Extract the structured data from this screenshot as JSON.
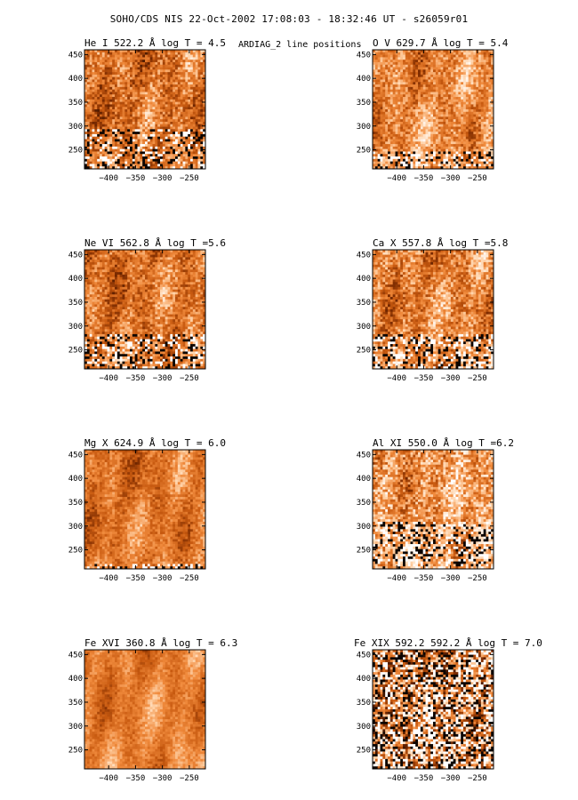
{
  "figure": {
    "title": "SOHO/CDS NIS  22-Oct-2002 17:08:03 - 18:32:46 UT - s26059r01",
    "subtitle": "ARDIAG_2 line positions"
  },
  "chart_data": [
    {
      "type": "heatmap",
      "title": "He I  522.2 Å log T = 4.5",
      "x_ticks": [
        -400,
        -350,
        -300,
        -250
      ],
      "y_ticks": [
        250,
        300,
        350,
        400,
        450
      ],
      "xlim": [
        -445,
        -220
      ],
      "ylim": [
        210,
        460
      ],
      "colormap": [
        "#000000",
        "#7a2a00",
        "#c85a10",
        "#f08a3c",
        "#ffd2a8",
        "#ffffff"
      ],
      "mean_intensity": 0.55,
      "noise": 0.22,
      "speckle_rows_below": 0.35
    },
    {
      "type": "heatmap",
      "title": "O V  629.7 Å log T = 5.4",
      "x_ticks": [
        -400,
        -350,
        -300,
        -250
      ],
      "y_ticks": [
        250,
        300,
        350,
        400,
        450
      ],
      "xlim": [
        -445,
        -220
      ],
      "ylim": [
        210,
        460
      ],
      "colormap": [
        "#000000",
        "#7a2a00",
        "#c85a10",
        "#f08a3c",
        "#ffd2a8",
        "#ffffff"
      ],
      "mean_intensity": 0.62,
      "noise": 0.2,
      "speckle_rows_below": 0.15
    },
    {
      "type": "heatmap",
      "title": "Ne VI  562.8 Å log T =5.6",
      "x_ticks": [
        -400,
        -350,
        -300,
        -250
      ],
      "y_ticks": [
        250,
        300,
        350,
        400,
        450
      ],
      "xlim": [
        -445,
        -220
      ],
      "ylim": [
        210,
        460
      ],
      "colormap": [
        "#000000",
        "#7a2a00",
        "#c85a10",
        "#f08a3c",
        "#ffd2a8",
        "#ffffff"
      ],
      "mean_intensity": 0.55,
      "noise": 0.2,
      "speckle_rows_below": 0.3
    },
    {
      "type": "heatmap",
      "title": "Ca X  557.8 Å log T =5.8",
      "x_ticks": [
        -400,
        -350,
        -300,
        -250
      ],
      "y_ticks": [
        250,
        300,
        350,
        400,
        450
      ],
      "xlim": [
        -445,
        -220
      ],
      "ylim": [
        210,
        460
      ],
      "colormap": [
        "#000000",
        "#7a2a00",
        "#c85a10",
        "#f08a3c",
        "#ffd2a8",
        "#ffffff"
      ],
      "mean_intensity": 0.6,
      "noise": 0.22,
      "speckle_rows_below": 0.3
    },
    {
      "type": "heatmap",
      "title": "Mg X  624.9 Å log T = 6.0",
      "x_ticks": [
        -400,
        -350,
        -300,
        -250
      ],
      "y_ticks": [
        250,
        300,
        350,
        400,
        450
      ],
      "xlim": [
        -445,
        -220
      ],
      "ylim": [
        210,
        460
      ],
      "colormap": [
        "#000000",
        "#7a2a00",
        "#c85a10",
        "#f08a3c",
        "#ffd2a8",
        "#ffffff"
      ],
      "mean_intensity": 0.55,
      "noise": 0.14,
      "speckle_rows_below": 0.05
    },
    {
      "type": "heatmap",
      "title": "Al XI  550.0 Å log T =6.2",
      "x_ticks": [
        -400,
        -350,
        -300,
        -250
      ],
      "y_ticks": [
        250,
        300,
        350,
        400,
        450
      ],
      "xlim": [
        -445,
        -220
      ],
      "ylim": [
        210,
        460
      ],
      "colormap": [
        "#000000",
        "#7a2a00",
        "#c85a10",
        "#f08a3c",
        "#ffd2a8",
        "#ffffff"
      ],
      "mean_intensity": 0.68,
      "noise": 0.26,
      "speckle_rows_below": 0.4
    },
    {
      "type": "heatmap",
      "title": "Fe XVI  360.8 Å log T = 6.3",
      "x_ticks": [
        -400,
        -350,
        -300,
        -250
      ],
      "y_ticks": [
        250,
        300,
        350,
        400,
        450
      ],
      "xlim": [
        -445,
        -220
      ],
      "ylim": [
        210,
        460
      ],
      "colormap": [
        "#000000",
        "#7a2a00",
        "#c85a10",
        "#f08a3c",
        "#ffd2a8",
        "#ffffff"
      ],
      "mean_intensity": 0.58,
      "noise": 0.1,
      "speckle_rows_below": 0.0
    },
    {
      "type": "heatmap",
      "title": "Fe XIX 592.2  592.2 Å log T = 7.0",
      "x_ticks": [
        -400,
        -350,
        -300,
        -250
      ],
      "y_ticks": [
        250,
        300,
        350,
        400,
        450
      ],
      "xlim": [
        -445,
        -220
      ],
      "ylim": [
        210,
        460
      ],
      "colormap": [
        "#000000",
        "#7a2a00",
        "#c85a10",
        "#f08a3c",
        "#ffd2a8",
        "#ffffff"
      ],
      "mean_intensity": 0.6,
      "noise": 0.45,
      "speckle_rows_below": 1.0
    }
  ]
}
